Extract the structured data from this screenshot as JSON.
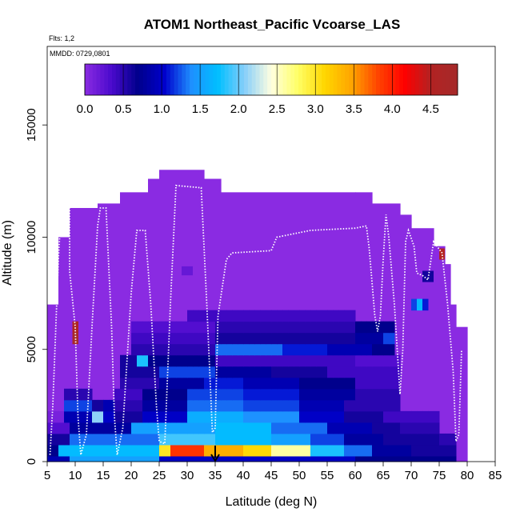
{
  "chart_data": {
    "type": "heatmap",
    "title": "ATOM1 Northeast_Pacific Vcoarse_LAS",
    "annotations": [
      "Flts: 1,2",
      "MMDD: 0729,0801"
    ],
    "xlabel": "Latitude (deg N)",
    "ylabel": "Altitude (m)",
    "xlim": [
      5,
      85
    ],
    "ylim": [
      0,
      18500
    ],
    "x_ticks": [
      "5",
      "10",
      "15",
      "20",
      "25",
      "30",
      "35",
      "40",
      "45",
      "50",
      "55",
      "60",
      "65",
      "70",
      "75",
      "80",
      "85"
    ],
    "y_ticks": [
      "0",
      "5000",
      "10000",
      "15000"
    ],
    "colorbar": {
      "range": [
        0,
        4.85
      ],
      "ticks": [
        "0.0",
        "0.5",
        "1.0",
        "1.5",
        "2.0",
        "2.5",
        "3.0",
        "3.5",
        "4.0",
        "4.5"
      ],
      "colors": [
        "#8a2be2",
        "#4b0acd",
        "#00008b",
        "#0000cd",
        "#1e90ff",
        "#00bfff",
        "#87cefa",
        "#ffffe0",
        "#ffff66",
        "#ffd700",
        "#ffa500",
        "#ff4500",
        "#ff0000",
        "#b22222",
        "#a52a2a"
      ]
    },
    "marker": {
      "latitude": 35,
      "label": "arrow"
    },
    "layers": [
      {
        "alt_min": 0,
        "alt_max": 250,
        "segments": [
          [
            5,
            9,
            0.9
          ],
          [
            9,
            25,
            1.5
          ],
          [
            25,
            60,
            1.0
          ],
          [
            60,
            78,
            0.7
          ]
        ]
      },
      {
        "alt_min": 250,
        "alt_max": 750,
        "segments": [
          [
            5,
            7,
            0.7
          ],
          [
            7,
            25,
            1.7
          ],
          [
            25,
            27,
            3.0
          ],
          [
            27,
            33,
            3.9
          ],
          [
            33,
            40,
            3.4
          ],
          [
            40,
            45,
            3.1
          ],
          [
            45,
            52,
            2.6
          ],
          [
            52,
            58,
            1.8
          ],
          [
            58,
            63,
            1.3
          ],
          [
            63,
            70,
            0.8
          ],
          [
            70,
            78,
            0.6
          ]
        ]
      },
      {
        "alt_min": 750,
        "alt_max": 1250,
        "segments": [
          [
            5,
            9,
            0.6
          ],
          [
            9,
            25,
            1.3
          ],
          [
            25,
            35,
            1.9
          ],
          [
            35,
            45,
            1.7
          ],
          [
            45,
            52,
            1.5
          ],
          [
            52,
            58,
            1.2
          ],
          [
            58,
            65,
            0.8
          ],
          [
            65,
            75,
            0.6
          ],
          [
            75,
            78,
            0.5
          ]
        ]
      },
      {
        "alt_min": 1250,
        "alt_max": 1750,
        "segments": [
          [
            5,
            9,
            0.3
          ],
          [
            9,
            20,
            0.8
          ],
          [
            20,
            35,
            1.5
          ],
          [
            35,
            45,
            1.7
          ],
          [
            45,
            55,
            1.3
          ],
          [
            55,
            63,
            0.9
          ],
          [
            63,
            68,
            0.6
          ],
          [
            68,
            75,
            0.5
          ]
        ]
      },
      {
        "alt_min": 1750,
        "alt_max": 2250,
        "segments": [
          [
            5,
            8,
            0.1
          ],
          [
            8,
            13,
            0.9
          ],
          [
            13,
            15,
            2.1
          ],
          [
            15,
            17,
            1.0
          ],
          [
            17,
            22,
            0.6
          ],
          [
            22,
            30,
            1.0
          ],
          [
            30,
            40,
            1.6
          ],
          [
            40,
            50,
            1.4
          ],
          [
            50,
            58,
            1.0
          ],
          [
            58,
            65,
            0.6
          ],
          [
            65,
            75,
            0.4
          ]
        ]
      },
      {
        "alt_min": 2250,
        "alt_max": 2750,
        "segments": [
          [
            8,
            13,
            1.2
          ],
          [
            13,
            15,
            0.6
          ],
          [
            15,
            17,
            0.9
          ],
          [
            17,
            22,
            0.5
          ],
          [
            22,
            30,
            0.8
          ],
          [
            30,
            40,
            1.3
          ],
          [
            40,
            50,
            1.2
          ],
          [
            50,
            58,
            0.9
          ],
          [
            58,
            68,
            0.5
          ]
        ]
      },
      {
        "alt_min": 2750,
        "alt_max": 3250,
        "segments": [
          [
            8,
            13,
            0.5
          ],
          [
            17,
            22,
            0.4
          ],
          [
            22,
            30,
            0.7
          ],
          [
            30,
            40,
            1.2
          ],
          [
            40,
            50,
            1.1
          ],
          [
            50,
            60,
            0.8
          ],
          [
            60,
            68,
            0.5
          ]
        ]
      },
      {
        "alt_min": 3250,
        "alt_max": 3750,
        "segments": [
          [
            18,
            25,
            0.5
          ],
          [
            25,
            33,
            0.8
          ],
          [
            33,
            40,
            1.1
          ],
          [
            40,
            50,
            0.9
          ],
          [
            50,
            60,
            0.7
          ],
          [
            60,
            68,
            0.4
          ]
        ]
      },
      {
        "alt_min": 3750,
        "alt_max": 4250,
        "segments": [
          [
            18,
            25,
            0.6
          ],
          [
            25,
            35,
            1.2
          ],
          [
            35,
            45,
            0.8
          ],
          [
            45,
            55,
            0.6
          ],
          [
            55,
            68,
            0.4
          ]
        ]
      },
      {
        "alt_min": 4250,
        "alt_max": 4750,
        "segments": [
          [
            18,
            21,
            0.6
          ],
          [
            21,
            23,
            1.8
          ],
          [
            23,
            35,
            0.7
          ],
          [
            35,
            60,
            0.4
          ],
          [
            60,
            68,
            0.3
          ]
        ]
      },
      {
        "alt_min": 4750,
        "alt_max": 5250,
        "segments": [
          [
            20,
            35,
            0.5
          ],
          [
            35,
            47,
            1.3
          ],
          [
            47,
            55,
            1.1
          ],
          [
            55,
            63,
            0.9
          ],
          [
            63,
            67,
            0.7
          ]
        ]
      },
      {
        "alt_min": 5250,
        "alt_max": 5750,
        "segments": [
          [
            9.5,
            10.5,
            4.8
          ],
          [
            20,
            35,
            0.4
          ],
          [
            35,
            60,
            0.6
          ],
          [
            60,
            65,
            0.8
          ],
          [
            65,
            67,
            1.2
          ]
        ]
      },
      {
        "alt_min": 5750,
        "alt_max": 6250,
        "segments": [
          [
            9.5,
            10.5,
            4.6
          ],
          [
            20,
            35,
            0.3
          ],
          [
            35,
            60,
            0.5
          ],
          [
            60,
            67,
            0.7
          ]
        ]
      },
      {
        "alt_min": 6250,
        "alt_max": 6750,
        "segments": [
          [
            30,
            60,
            0.4
          ]
        ]
      },
      {
        "alt_min": 6750,
        "alt_max": 7250,
        "segments": [
          [
            70,
            71,
            1.2
          ],
          [
            71,
            72,
            1.7
          ],
          [
            72,
            73,
            1.1
          ]
        ]
      }
    ]
  }
}
